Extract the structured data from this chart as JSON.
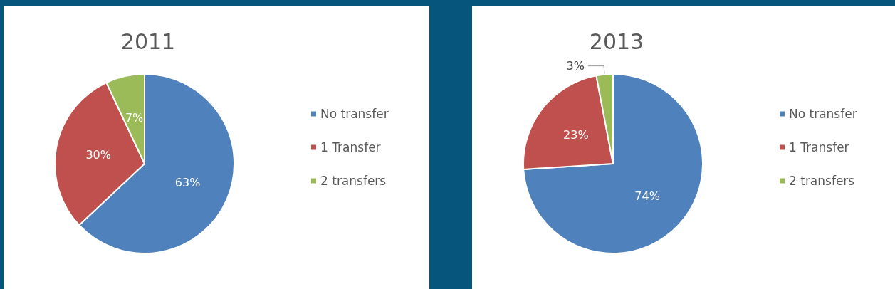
{
  "chart_data": [
    {
      "type": "pie",
      "title": "2011",
      "categories": [
        "No transfer",
        "1 Transfer",
        "2 transfers"
      ],
      "values": [
        63,
        30,
        7
      ],
      "colors": [
        "#4f81bd",
        "#c0504d",
        "#9bbb59"
      ],
      "value_labels": [
        "63%",
        "30%",
        "7%"
      ],
      "legend": "right"
    },
    {
      "type": "pie",
      "title": "2013",
      "categories": [
        "No transfer",
        "1 Transfer",
        "2 transfers"
      ],
      "values": [
        74,
        23,
        3
      ],
      "colors": [
        "#4f81bd",
        "#c0504d",
        "#9bbb59"
      ],
      "value_labels": [
        "74%",
        "23%",
        "3%"
      ],
      "legend": "right"
    }
  ]
}
